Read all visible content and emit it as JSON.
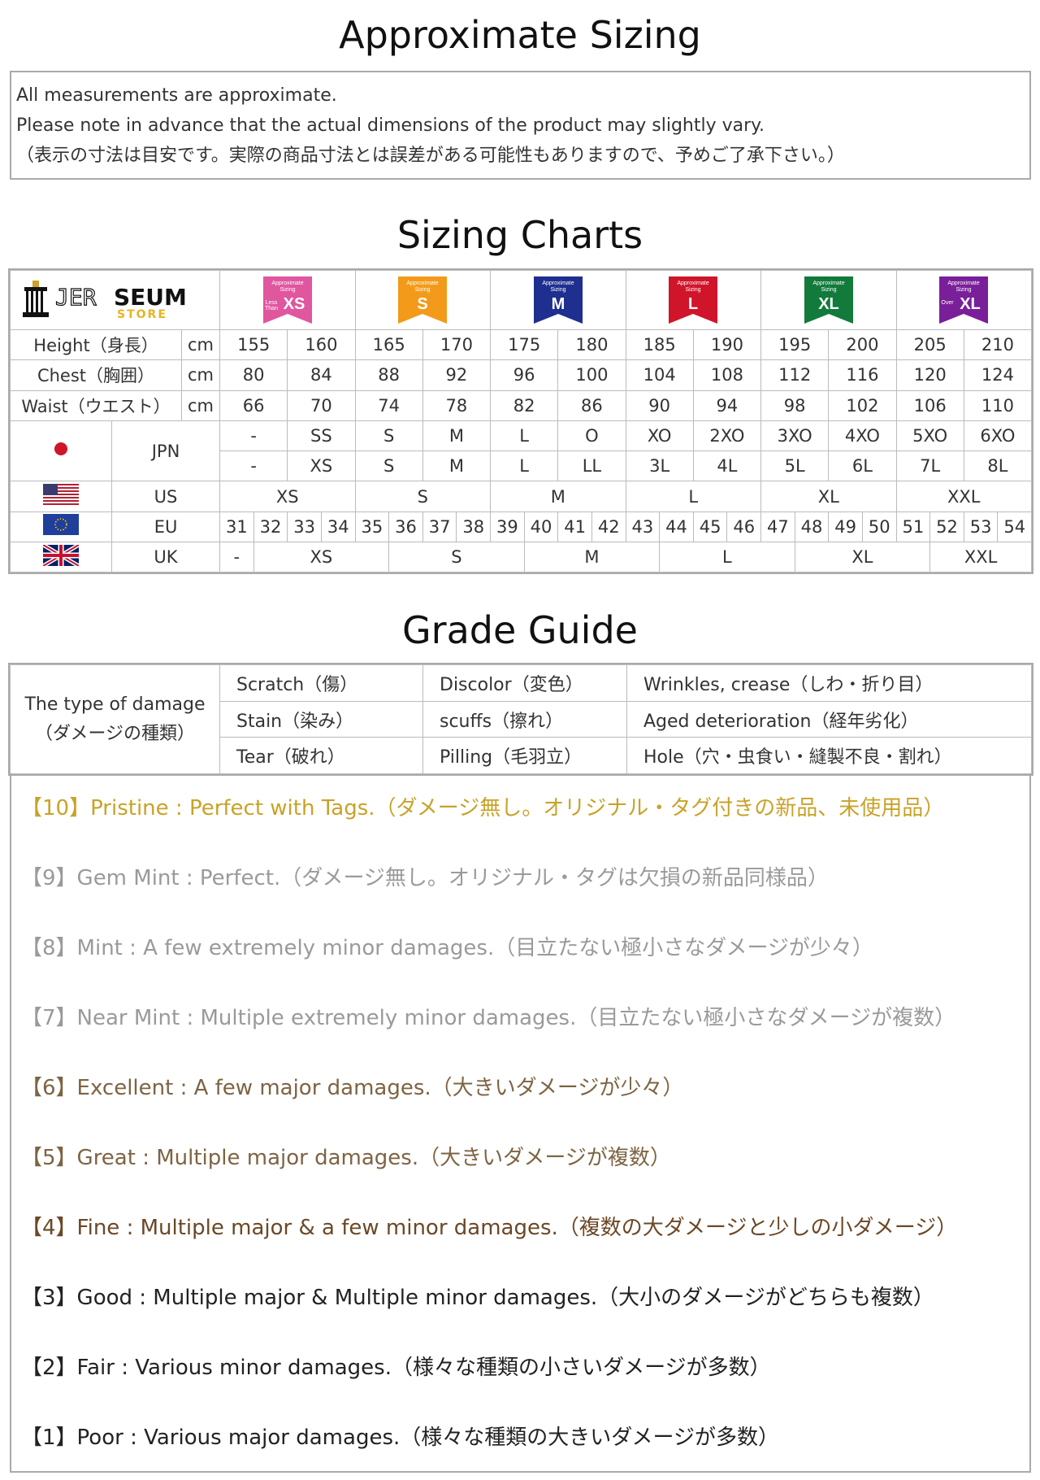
{
  "approx": {
    "title": "Approximate Sizing",
    "lines": [
      "All measurements are approximate.",
      "Please note in advance that the actual dimensions of the product may slightly vary.",
      "（表示の寸法は目安です。実際の商品寸法とは誤差がある可能性もありますので、予めご了承下さい。）"
    ]
  },
  "sizing": {
    "title": "Sizing Charts",
    "logo": {
      "brand": "JERSEUM",
      "sub": "STORE"
    },
    "badges": [
      {
        "top": "Approximate Sizing",
        "prefix": "Less Than",
        "size": "XS",
        "color": "#e0569f"
      },
      {
        "top": "Approximate Sizing",
        "prefix": "",
        "size": "S",
        "color": "#f39a1a"
      },
      {
        "top": "Approximate Sizing",
        "prefix": "",
        "size": "M",
        "color": "#1e2f8f"
      },
      {
        "top": "Approximate Sizing",
        "prefix": "",
        "size": "L",
        "color": "#d0142a"
      },
      {
        "top": "Approximate Sizing",
        "prefix": "",
        "size": "XL",
        "color": "#127a3a"
      },
      {
        "top": "Approximate Sizing",
        "prefix": "Over",
        "size": "XL",
        "color": "#7a1f9a"
      }
    ],
    "measures": [
      {
        "label": "Height（身長）",
        "unit": "cm",
        "values": [
          "155",
          "160",
          "165",
          "170",
          "175",
          "180",
          "185",
          "190",
          "195",
          "200",
          "205",
          "210"
        ]
      },
      {
        "label": "Chest（胸囲）",
        "unit": "cm",
        "values": [
          "80",
          "84",
          "88",
          "92",
          "96",
          "100",
          "104",
          "108",
          "112",
          "116",
          "120",
          "124"
        ]
      },
      {
        "label": "Waist（ウエスト）",
        "unit": "cm",
        "values": [
          "66",
          "70",
          "74",
          "78",
          "82",
          "86",
          "90",
          "94",
          "98",
          "102",
          "106",
          "110"
        ]
      }
    ],
    "jpn": {
      "label": "JPN",
      "row1": [
        "-",
        "SS",
        "S",
        "M",
        "L",
        "O",
        "XO",
        "2XO",
        "3XO",
        "4XO",
        "5XO",
        "6XO"
      ],
      "row2": [
        "-",
        "XS",
        "S",
        "M",
        "L",
        "LL",
        "3L",
        "4L",
        "5L",
        "6L",
        "7L",
        "8L"
      ]
    },
    "us": {
      "label": "US",
      "values": [
        "XS",
        "S",
        "M",
        "L",
        "XL",
        "XXL"
      ]
    },
    "eu": {
      "label": "EU",
      "values": [
        "31",
        "32",
        "33",
        "34",
        "35",
        "36",
        "37",
        "38",
        "39",
        "40",
        "41",
        "42",
        "43",
        "44",
        "45",
        "46",
        "47",
        "48",
        "49",
        "50",
        "51",
        "52",
        "53",
        "54"
      ]
    },
    "uk": {
      "label": "UK",
      "values": [
        "-",
        "XS",
        "S",
        "M",
        "L",
        "XL",
        "XXL"
      ]
    }
  },
  "grade": {
    "title": "Grade Guide",
    "damage_label": [
      "The type of damage",
      "（ダメージの種類）"
    ],
    "damage_rows": [
      [
        "Scratch（傷）",
        "Discolor（変色）",
        "Wrinkles, crease（しわ・折り目）"
      ],
      [
        "Stain（染み）",
        "scuffs（擦れ）",
        "Aged deterioration（経年劣化）"
      ],
      [
        "Tear（破れ）",
        "Pilling（毛羽立）",
        "Hole（穴・虫食い・縫製不良・割れ）"
      ]
    ],
    "items": [
      {
        "text": "【10】Pristine : Perfect with Tags.（ダメージ無し。オリジナル・タグ付きの新品、未使用品）",
        "color": "#c9a227"
      },
      {
        "text": "【9】Gem Mint : Perfect.（ダメージ無し。オリジナル・タグは欠損の新品同様品）",
        "color": "#9a9a9a"
      },
      {
        "text": "【8】Mint : A few extremely minor damages.（目立たない極小さなダメージが少々）",
        "color": "#9a9a9a"
      },
      {
        "text": "【7】Near Mint : Multiple extremely minor damages.（目立たない極小さなダメージが複数）",
        "color": "#9a9a9a"
      },
      {
        "text": "【6】Excellent : A few major damages.（大きいダメージが少々）",
        "color": "#7d6443"
      },
      {
        "text": "【5】Great : Multiple major damages.（大きいダメージが複数）",
        "color": "#7d6443"
      },
      {
        "text": "【4】Fine : Multiple major & a few minor damages.（複数の大ダメージと少しの小ダメージ）",
        "color": "#6b4826"
      },
      {
        "text": "【3】Good : Multiple major & Multiple minor damages.（大小のダメージがどちらも複数）",
        "color": "#222222"
      },
      {
        "text": "【2】Fair : Various minor damages.（様々な種類の小さいダメージが多数）",
        "color": "#222222"
      },
      {
        "text": "【1】Poor : Various major damages.（様々な種類の大きいダメージが多数）",
        "color": "#222222"
      }
    ]
  }
}
